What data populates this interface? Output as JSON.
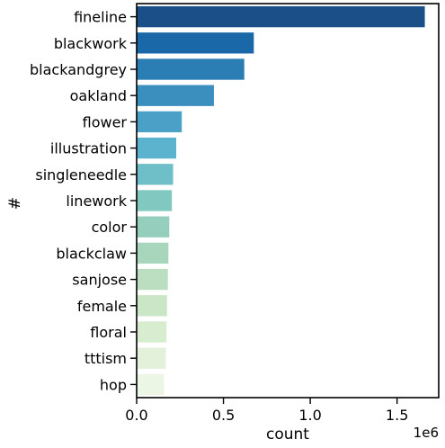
{
  "chart_data": {
    "type": "bar",
    "orientation": "horizontal",
    "categories": [
      "fineline",
      "blackwork",
      "blackandgrey",
      "oakland",
      "flower",
      "illustration",
      "singleneedle",
      "linework",
      "color",
      "blackclaw",
      "sanjose",
      "female",
      "floral",
      "tttism",
      "hop"
    ],
    "values": [
      1660000,
      675000,
      620000,
      445000,
      260000,
      228000,
      210000,
      203000,
      188000,
      183000,
      180000,
      175000,
      172000,
      168000,
      158000
    ],
    "colors": [
      "#1a4f88",
      "#1a68a8",
      "#2a7eb3",
      "#3a8fbe",
      "#4aa0c6",
      "#5cb3cd",
      "#6ebfc8",
      "#81c8c0",
      "#95cebd",
      "#a8d6bc",
      "#badebf",
      "#cbe6c6",
      "#d8edcf",
      "#e3f1db",
      "#ecf6e4"
    ],
    "xlabel": "count",
    "ylabel": "#",
    "xlim": [
      0,
      1740000
    ],
    "xticks": [
      {
        "value": 0,
        "label": "0.0"
      },
      {
        "value": 500000,
        "label": "0.5"
      },
      {
        "value": 1000000,
        "label": "1.0"
      },
      {
        "value": 1500000,
        "label": "1.5"
      }
    ],
    "scale_label": "1e6",
    "grid": false,
    "legend": "none"
  }
}
